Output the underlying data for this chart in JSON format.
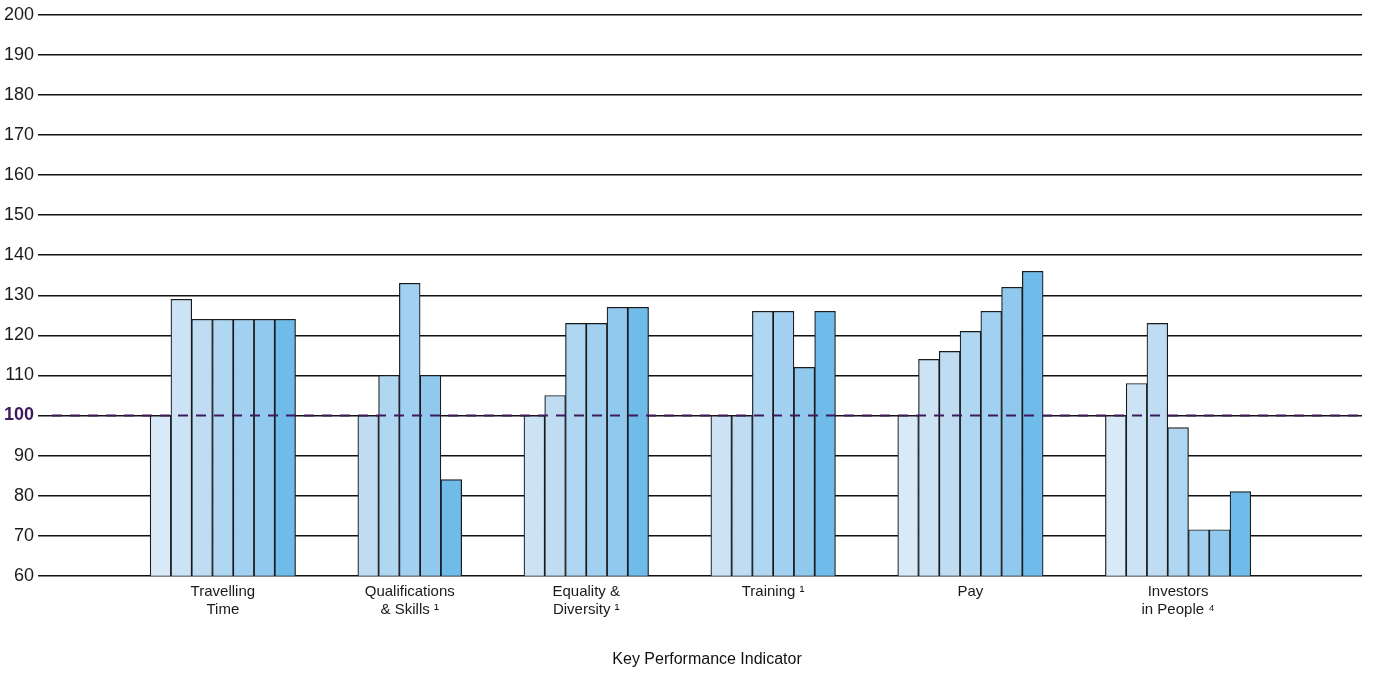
{
  "chart_data": {
    "type": "bar",
    "xlabel": "Key Performance Indicator",
    "categories": [
      "Travelling\nTime",
      "Qualifications\n& Skills ¹",
      "Equality &\nDiversity ¹",
      "Training ¹",
      "Pay",
      "Investors\nin People ⁴"
    ],
    "series": [
      {
        "color": "#d8eaf8",
        "values": [
          100,
          null,
          null,
          null,
          100,
          100
        ]
      },
      {
        "color": "#cce3f6",
        "values": [
          129,
          null,
          100,
          100,
          114,
          108
        ]
      },
      {
        "color": "#bfdcf3",
        "values": [
          124,
          100,
          105,
          100,
          116,
          123
        ]
      },
      {
        "color": "#b0d7f1",
        "values": [
          124,
          110,
          123,
          126,
          121,
          97
        ]
      },
      {
        "color": "#a2d0f0",
        "values": [
          124,
          133,
          123,
          126,
          126,
          71.5
        ]
      },
      {
        "color": "#90c8ee",
        "values": [
          124,
          110,
          127,
          112,
          132,
          71.5
        ]
      },
      {
        "color": "#6fbbe9",
        "values": [
          124,
          84,
          127,
          126,
          136,
          81
        ]
      }
    ],
    "ylim": [
      60,
      200
    ],
    "yticks": [
      60,
      70,
      80,
      90,
      100,
      110,
      120,
      130,
      140,
      150,
      160,
      170,
      180,
      190,
      200
    ],
    "grid": "y",
    "legend": false,
    "ref_lines": [
      {
        "axis": "y",
        "value": 100,
        "color": "#3d1a5c",
        "line_style": "dashed"
      }
    ]
  }
}
